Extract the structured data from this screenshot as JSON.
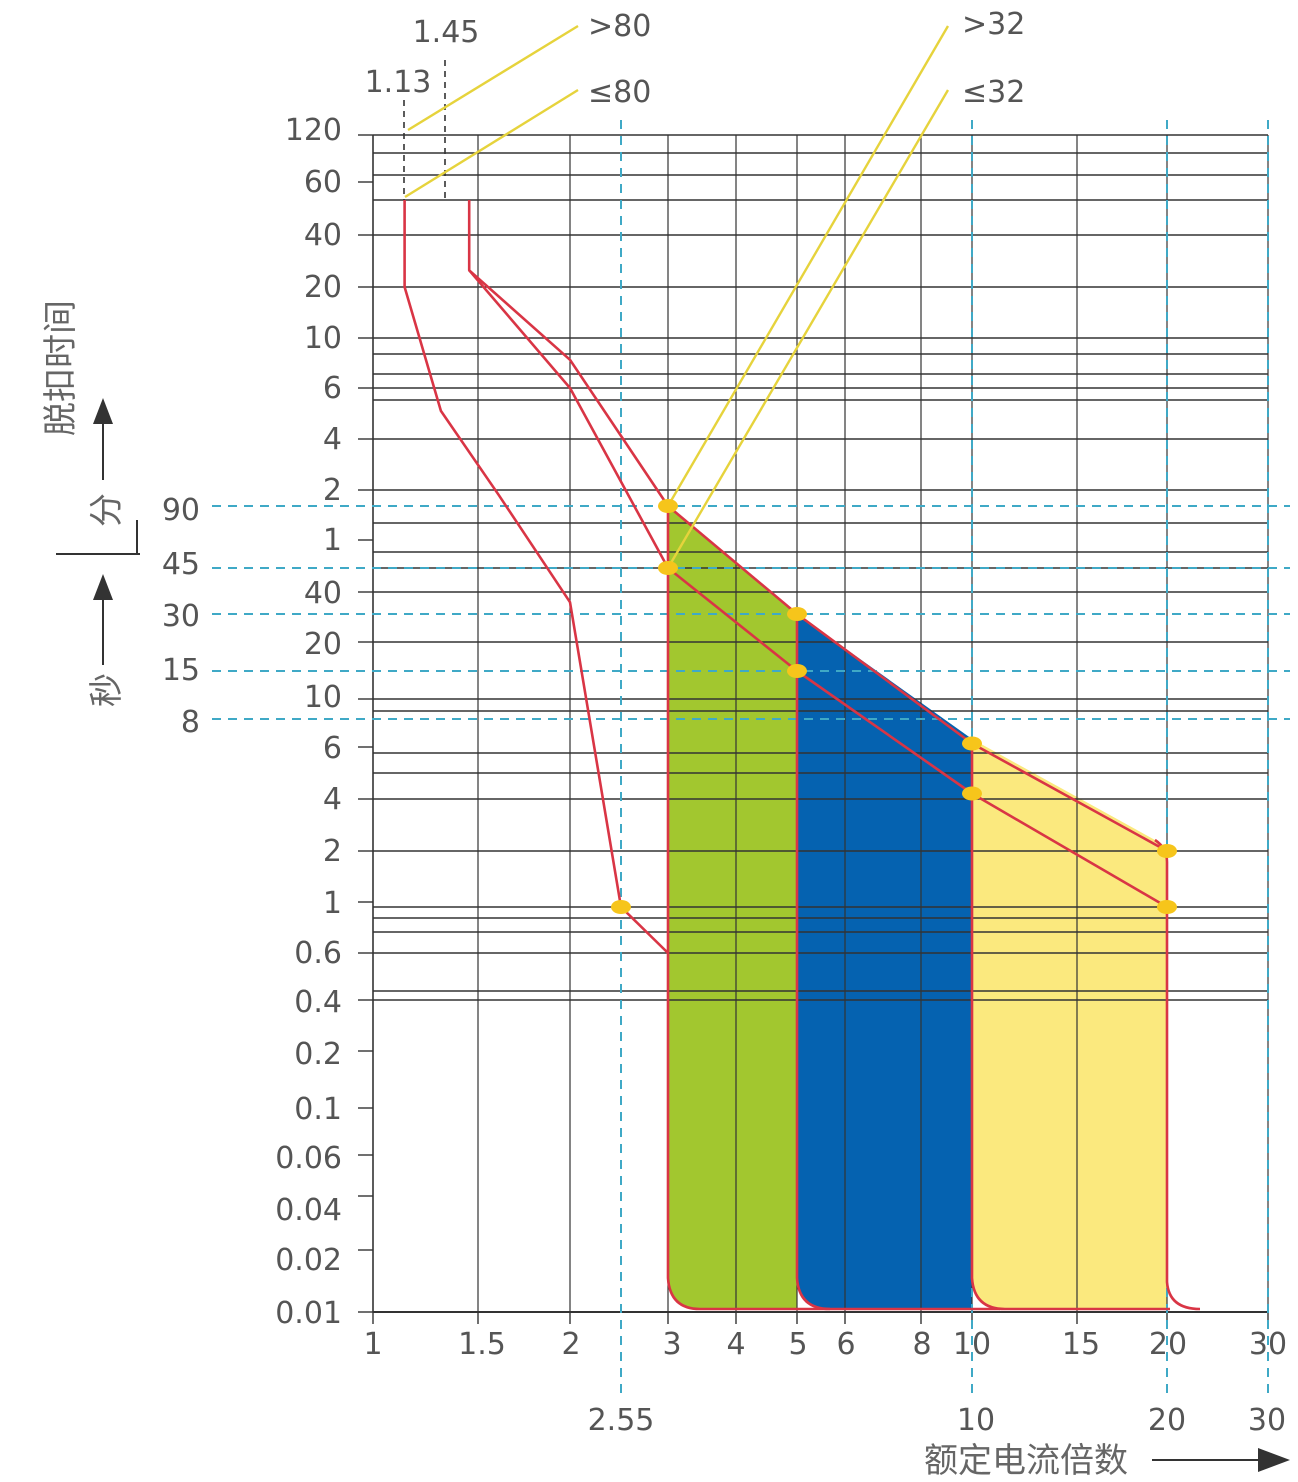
{
  "chart_data": {
    "type": "line",
    "x_scale": "log",
    "x_ticks": [
      "1",
      "1.5",
      "2",
      "3",
      "4",
      "5",
      "6",
      "8",
      "10",
      "15",
      "20",
      "30"
    ],
    "x_ticks_secondary": [
      "2.55",
      "10",
      "20",
      "30"
    ],
    "x_axis_label": "额定电流倍数",
    "y_axis_label_main": "脱扣时间",
    "y_unit_minutes": "分",
    "y_unit_seconds": "秒",
    "y_ticks_minutes": [
      "120",
      "60",
      "40",
      "20",
      "10",
      "6",
      "4",
      "2",
      "1"
    ],
    "y_ticks_seconds": [
      "40",
      "20",
      "10",
      "6",
      "4",
      "2",
      "1",
      "0.6",
      "0.4",
      "0.2",
      "0.1",
      "0.06",
      "0.04",
      "0.02",
      "0.01"
    ],
    "y_ticks_reference_seconds": [
      "90",
      "45",
      "30",
      "15",
      "8"
    ],
    "annotations": {
      "x_1_13": "1.13",
      "x_1_45": "1.45",
      "gt80": ">80",
      "le80": "≤80",
      "gt32": ">32",
      "le32": "≤32"
    },
    "series": [
      {
        "points": [
          [
            1.13,
            3600
          ],
          [
            1.13,
            1200
          ],
          [
            1.3,
            300
          ],
          [
            1.6,
            110
          ],
          [
            2.0,
            35
          ],
          [
            2.55,
            1
          ],
          [
            3,
            0.6
          ]
        ]
      },
      {
        "points": [
          [
            1.45,
            3600
          ],
          [
            1.45,
            1500
          ],
          [
            2,
            480
          ],
          [
            3,
            90
          ],
          [
            5,
            30
          ],
          [
            10,
            6.5
          ],
          [
            20,
            2
          ]
        ]
      },
      {
        "points": [
          [
            1.45,
            1500
          ],
          [
            2,
            360
          ],
          [
            3,
            45
          ],
          [
            5,
            15
          ],
          [
            10,
            4.2
          ],
          [
            20,
            1
          ]
        ]
      }
    ],
    "markers": [
      [
        3,
        90
      ],
      [
        3,
        45
      ],
      [
        5,
        30
      ],
      [
        5,
        15
      ],
      [
        10,
        6.5
      ],
      [
        10,
        4.2
      ],
      [
        20,
        2
      ],
      [
        20,
        1
      ],
      [
        2.55,
        1
      ]
    ],
    "regions": [
      {
        "color": "#a2c72f",
        "x_range": [
          3,
          5
        ]
      },
      {
        "color": "#0562b0",
        "x_range": [
          5,
          10
        ]
      },
      {
        "color": "#fbe97e",
        "x_range": [
          10,
          20
        ]
      }
    ],
    "colors": {
      "curve": "#d93545",
      "marker": "#f6c51b",
      "grid": "#333333",
      "dash": "#3fa9c6",
      "leader": "#e6d33c"
    }
  }
}
